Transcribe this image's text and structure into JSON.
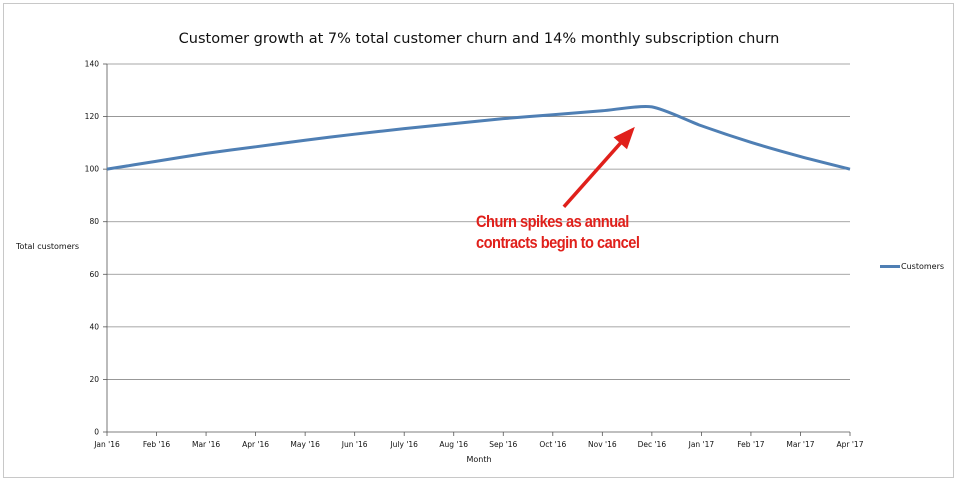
{
  "chart_data": {
    "type": "line",
    "title": "Customer growth at 7% total customer churn and 14% monthly subscription churn",
    "xlabel": "Month",
    "ylabel": "Total customers",
    "ylim": [
      0,
      140
    ],
    "yticks": [
      0,
      20,
      40,
      60,
      80,
      100,
      120,
      140
    ],
    "categories": [
      "Jan '16",
      "Feb '16",
      "Mar '16",
      "Apr '16",
      "May '16",
      "Jun '16",
      "July '16",
      "Aug '16",
      "Sep '16",
      "Oct '16",
      "Nov '16",
      "Dec '16",
      "Jan '17",
      "Feb '17",
      "Mar '17",
      "Apr '17"
    ],
    "series": [
      {
        "name": "Customers",
        "color": "#4f7fb4",
        "values": [
          100,
          103,
          106,
          108.5,
          111,
          113.3,
          115.4,
          117.3,
          119.2,
          120.7,
          122.2,
          123.7,
          116.5,
          110.2,
          104.8,
          100
        ]
      }
    ],
    "grid": true,
    "legend": "right",
    "annotation": {
      "text": "Churn spikes as annual contracts begin to cancel",
      "color": "#e0201b",
      "points_to": "Dec '16"
    }
  }
}
